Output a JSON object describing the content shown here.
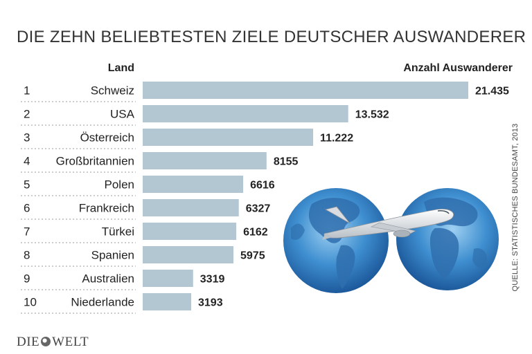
{
  "title": "DIE ZEHN BELIEBTESTEN ZIELE DEUTSCHER AUSWANDERER",
  "column_headers": {
    "land": "Land",
    "count": "Anzahl Auswanderer"
  },
  "source": "QUELLE: STATISTISCHES BUNDESAMT, 2013",
  "logo": {
    "left": "DIE",
    "right": "WELT"
  },
  "colors": {
    "bar": "#b3c7d3",
    "text": "#222222",
    "divider": "#9a9a9a"
  },
  "chart_data": {
    "type": "bar",
    "orientation": "horizontal",
    "ranks": [
      "1",
      "2",
      "3",
      "4",
      "5",
      "6",
      "7",
      "8",
      "9",
      "10"
    ],
    "categories": [
      "Schweiz",
      "USA",
      "Österreich",
      "Großbritannien",
      "Polen",
      "Frankreich",
      "Türkei",
      "Spanien",
      "Australien",
      "Niederlande"
    ],
    "values": [
      21435,
      13532,
      11222,
      8155,
      6616,
      6327,
      6162,
      5975,
      3319,
      3193
    ],
    "value_labels": [
      "21.435",
      "13.532",
      "11.222",
      "8155",
      "6616",
      "6327",
      "6162",
      "5975",
      "3319",
      "3193"
    ],
    "xlabel": "Anzahl Auswanderer",
    "ylabel": "Land",
    "xlim": [
      0,
      21435
    ],
    "grid": false,
    "legend": "none"
  }
}
